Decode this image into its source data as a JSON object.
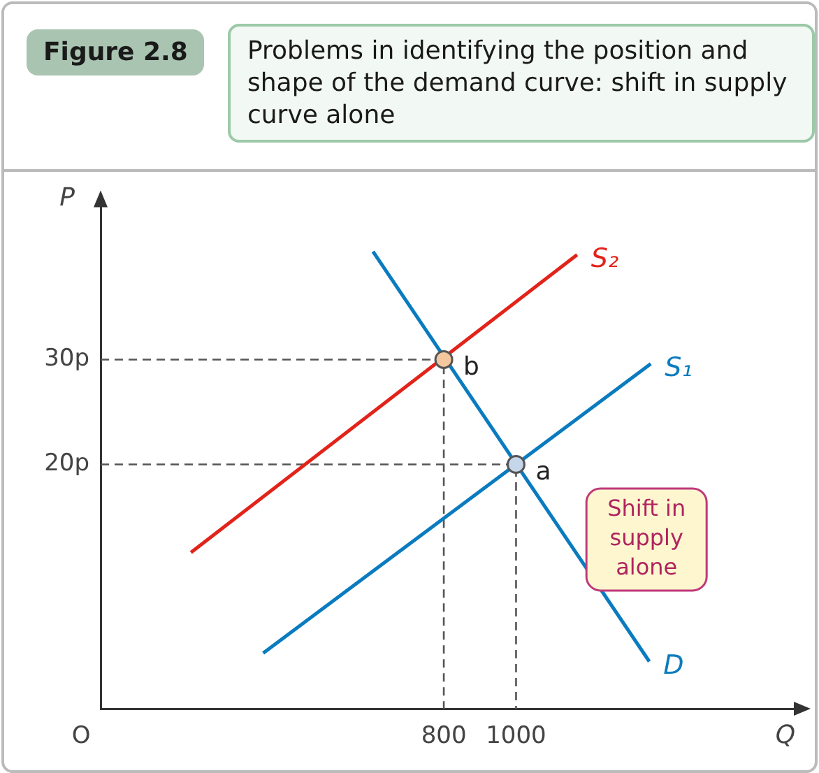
{
  "chart_data": {
    "type": "line",
    "title": "Problems in identifying the position and shape of the demand curve: shift in supply curve alone",
    "xlabel": "Q",
    "ylabel": "P",
    "annotations": [
      "Figure 2.8",
      "O",
      "Shift in supply alone"
    ],
    "xlim": [
      -150,
      1800
    ],
    "ylim": [
      -3.3,
      45.6
    ],
    "xticks": [
      800,
      1000
    ],
    "yticks": [
      {
        "value": 20,
        "label": "20p"
      },
      {
        "value": 30,
        "label": "30p"
      }
    ],
    "grid": false,
    "legend": false,
    "marker": "none",
    "series": [
      {
        "name": "S₂",
        "color": "#e2231a",
        "x": [
          100,
          1169
        ],
        "values": [
          11.6,
          40
        ]
      },
      {
        "name": "S₁",
        "color": "#0a7bbf",
        "x": [
          300,
          1373
        ],
        "values": [
          2,
          29.6
        ]
      },
      {
        "name": "D",
        "color": "#0a7bbf",
        "x": [
          604,
          1369
        ],
        "values": [
          40.3,
          1.2
        ]
      },
      {
        "color": "#555555",
        "line_style": "dashed",
        "x": [
          -150,
          800,
          800
        ],
        "values": [
          30,
          30,
          -3.3
        ]
      },
      {
        "color": "#555555",
        "line_style": "dashed",
        "x": [
          -150,
          1000,
          1000
        ],
        "values": [
          20,
          20,
          -3.3
        ]
      },
      {
        "name": "b",
        "type": "scatter",
        "marker": "circle",
        "color": "#f4c79e",
        "x": [
          800
        ],
        "values": [
          30
        ]
      },
      {
        "name": "a",
        "type": "scatter",
        "marker": "circle",
        "color": "#c5d6ea",
        "x": [
          1000
        ],
        "values": [
          20
        ]
      }
    ]
  }
}
